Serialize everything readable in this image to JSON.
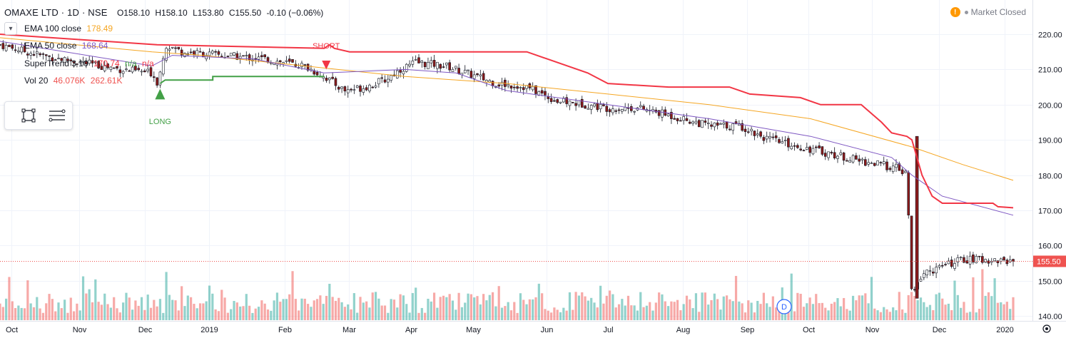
{
  "header": {
    "symbol": "OMAXE LTD · 1D · NSE",
    "open": "O158.10",
    "high": "H158.10",
    "low": "L153.80",
    "close": "C155.50",
    "change": "-0.10 (−0.06%)"
  },
  "market_status": "Market Closed",
  "legend": {
    "ema100_label": "EMA 100 close",
    "ema100_value": "178.49",
    "ema50_label": "EMA 50 close",
    "ema50_value": "168.64",
    "supertrend_label": "SuperTrend 3 10",
    "supertrend_value": "170.74",
    "supertrend_na1": "n/a",
    "supertrend_na2": "n/a",
    "vol_label": "Vol 20",
    "vol_value1": "46.076K",
    "vol_value2": "262.61K"
  },
  "signals": {
    "long": "LONG",
    "short": "SHORT"
  },
  "dividend_marker": "D",
  "price_label": "155.50",
  "colors": {
    "up": "#26a69a",
    "down": "#ef5350",
    "ema100": "#f5a623",
    "ema50": "#7e57c2",
    "supertrend_up": "#43a047",
    "supertrend_down": "#f23645"
  },
  "chart_data": {
    "type": "candlestick",
    "y_axis": {
      "range": [
        140,
        222
      ],
      "ticks": [
        "140.00",
        "150.00",
        "160.00",
        "170.00",
        "180.00",
        "190.00",
        "200.00",
        "210.00",
        "220.00"
      ]
    },
    "x_axis": {
      "ticks": [
        "Oct",
        "Nov",
        "Dec",
        "2019",
        "Feb",
        "Mar",
        "Apr",
        "May",
        "Jun",
        "Jul",
        "Aug",
        "Sep",
        "Oct",
        "Nov",
        "Dec",
        "2020"
      ]
    },
    "close_path": [
      [
        0,
        217
      ],
      [
        0.04,
        214
      ],
      [
        0.08,
        212
      ],
      [
        0.12,
        210
      ],
      [
        0.15,
        209
      ],
      [
        0.156,
        206
      ],
      [
        0.163,
        217
      ],
      [
        0.18,
        215
      ],
      [
        0.22,
        214
      ],
      [
        0.26,
        213
      ],
      [
        0.3,
        211
      ],
      [
        0.32,
        208
      ],
      [
        0.34,
        204
      ],
      [
        0.36,
        205
      ],
      [
        0.38,
        207
      ],
      [
        0.395,
        210
      ],
      [
        0.41,
        212
      ],
      [
        0.44,
        211
      ],
      [
        0.46,
        209
      ],
      [
        0.49,
        206
      ],
      [
        0.52,
        205
      ],
      [
        0.55,
        201
      ],
      [
        0.58,
        200
      ],
      [
        0.6,
        199
      ],
      [
        0.63,
        199
      ],
      [
        0.66,
        197
      ],
      [
        0.7,
        194
      ],
      [
        0.73,
        194
      ],
      [
        0.76,
        190
      ],
      [
        0.79,
        188
      ],
      [
        0.82,
        186
      ],
      [
        0.85,
        184
      ],
      [
        0.885,
        182
      ],
      [
        0.895,
        180
      ],
      [
        0.9,
        145
      ],
      [
        0.91,
        152
      ],
      [
        0.93,
        154
      ],
      [
        0.95,
        156
      ],
      [
        0.97,
        156
      ],
      [
        1.0,
        155.5
      ]
    ],
    "ema100": [
      [
        0,
        219
      ],
      [
        0.15,
        215
      ],
      [
        0.2,
        214
      ],
      [
        0.3,
        211
      ],
      [
        0.4,
        208
      ],
      [
        0.5,
        206
      ],
      [
        0.6,
        203
      ],
      [
        0.7,
        200
      ],
      [
        0.8,
        196
      ],
      [
        0.9,
        188
      ],
      [
        0.95,
        183
      ],
      [
        1.0,
        178.5
      ]
    ],
    "ema50": [
      [
        0,
        218
      ],
      [
        0.15,
        211
      ],
      [
        0.17,
        214
      ],
      [
        0.25,
        213
      ],
      [
        0.32,
        209
      ],
      [
        0.4,
        210
      ],
      [
        0.45,
        209
      ],
      [
        0.5,
        204
      ],
      [
        0.6,
        200
      ],
      [
        0.7,
        196
      ],
      [
        0.8,
        191
      ],
      [
        0.88,
        185
      ],
      [
        0.9,
        180
      ],
      [
        0.93,
        174
      ],
      [
        1.0,
        168.6
      ]
    ],
    "supertrend": {
      "long_segment": [
        [
          0.158,
          206
        ],
        [
          0.163,
          207
        ],
        [
          0.21,
          207
        ],
        [
          0.21,
          208
        ],
        [
          0.32,
          208
        ],
        [
          0.32,
          208
        ]
      ],
      "short_segment": [
        [
          0,
          220
        ],
        [
          0.155,
          217
        ],
        [
          0.32,
          216
        ],
        [
          0.325,
          217
        ],
        [
          0.33,
          216
        ],
        [
          0.345,
          215
        ],
        [
          0.52,
          215
        ],
        [
          0.54,
          213
        ],
        [
          0.56,
          211
        ],
        [
          0.58,
          209
        ],
        [
          0.6,
          206
        ],
        [
          0.66,
          205
        ],
        [
          0.72,
          205
        ],
        [
          0.74,
          203
        ],
        [
          0.79,
          202
        ],
        [
          0.81,
          200
        ],
        [
          0.85,
          200
        ],
        [
          0.87,
          195
        ],
        [
          0.88,
          192
        ],
        [
          0.895,
          191
        ],
        [
          0.9,
          190
        ],
        [
          0.91,
          180
        ],
        [
          0.92,
          174
        ],
        [
          0.93,
          172
        ],
        [
          0.98,
          172
        ],
        [
          0.985,
          171
        ],
        [
          1.0,
          170.7
        ]
      ]
    },
    "volume_max_label": "262.61K",
    "last_price": 155.5
  }
}
